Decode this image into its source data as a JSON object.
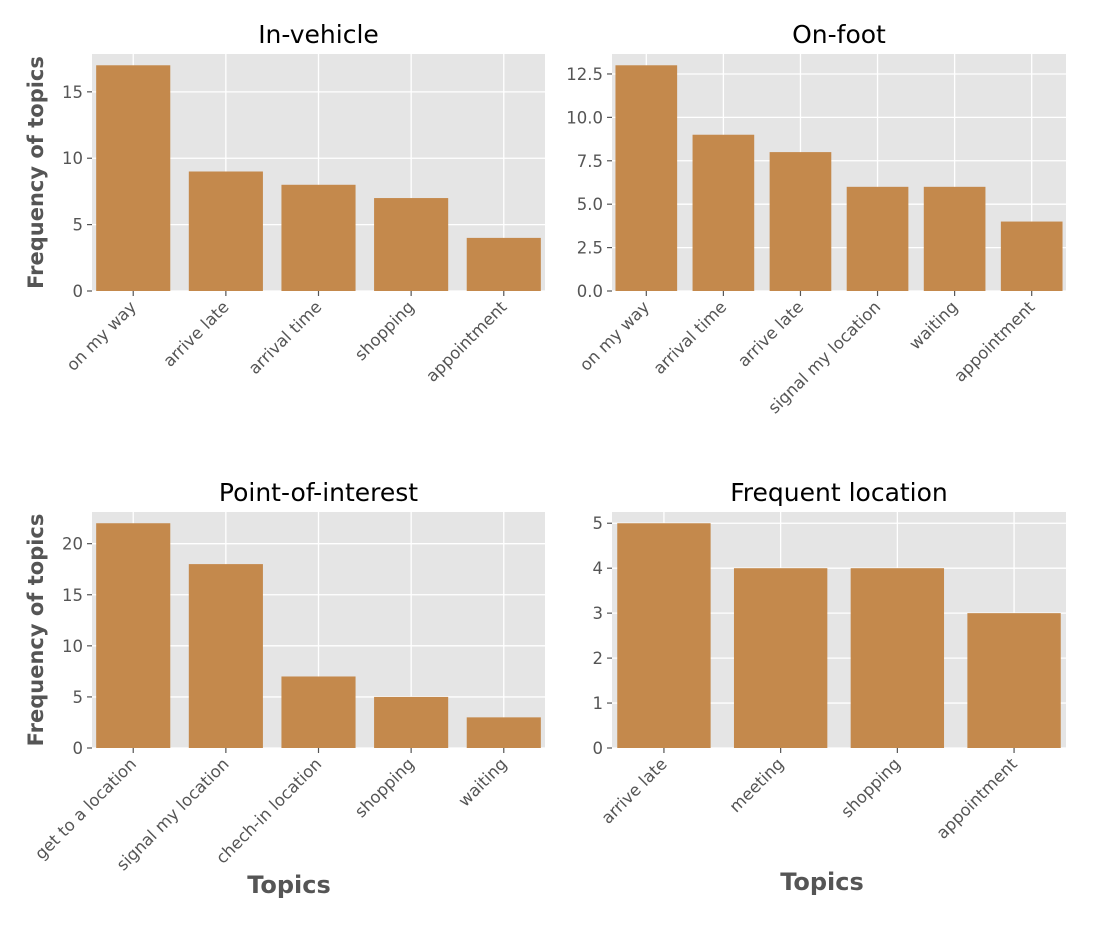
{
  "colors": {
    "bar": "#c4894c",
    "panel_bg": "#e5e5e5",
    "grid": "#ffffff",
    "tick_text": "#555555",
    "title_text": "#000000"
  },
  "chart_data": [
    {
      "type": "bar",
      "title": "In-vehicle",
      "categories": [
        "on my way",
        "arrive late",
        "arrival time",
        "shopping",
        "appointment"
      ],
      "values": [
        17,
        9,
        8,
        7,
        4
      ],
      "ylabel": "Frequency of topics",
      "xlabel": "",
      "ylim": [
        0,
        17.85
      ],
      "yticks": [
        "0",
        "5",
        "10",
        "15"
      ],
      "grid": true
    },
    {
      "type": "bar",
      "title": "On-foot",
      "categories": [
        "on my way",
        "arrival time",
        "arrive late",
        "signal my location",
        "waiting",
        "appointment"
      ],
      "values": [
        13,
        9,
        8,
        6,
        6,
        4
      ],
      "ylabel": "",
      "xlabel": "",
      "ylim": [
        0,
        13.65
      ],
      "yticks": [
        "0.0",
        "2.5",
        "5.0",
        "7.5",
        "10.0",
        "12.5"
      ],
      "grid": true
    },
    {
      "type": "bar",
      "title": "Point-of-interest",
      "categories": [
        "get to a location",
        "signal my location",
        "chech-in location",
        "shopping",
        "waiting"
      ],
      "values": [
        22,
        18,
        7,
        5,
        3
      ],
      "ylabel": "Frequency of topics",
      "xlabel": "Topics",
      "ylim": [
        0,
        23.1
      ],
      "yticks": [
        "0",
        "5",
        "10",
        "15",
        "20"
      ],
      "grid": true
    },
    {
      "type": "bar",
      "title": "Frequent location",
      "categories": [
        "arrive late",
        "meeting",
        "shopping",
        "appointment"
      ],
      "values": [
        5,
        4,
        4,
        3
      ],
      "ylabel": "",
      "xlabel": "Topics",
      "ylim": [
        0,
        5.25
      ],
      "yticks": [
        "0",
        "1",
        "2",
        "3",
        "4",
        "5"
      ],
      "grid": true
    }
  ]
}
